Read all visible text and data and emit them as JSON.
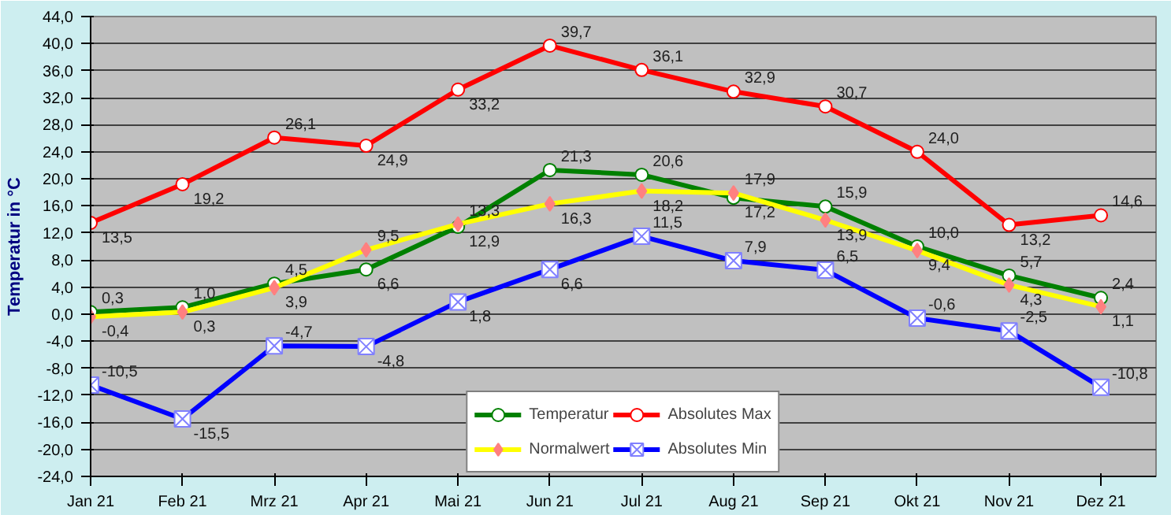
{
  "chart_data": {
    "type": "line",
    "ylabel": "Temperatur in °C",
    "categories": [
      "Jan 21",
      "Feb 21",
      "Mrz 21",
      "Apr 21",
      "Mai 21",
      "Jun 21",
      "Jul 21",
      "Aug 21",
      "Sep 21",
      "Okt 21",
      "Nov 21",
      "Dez 21"
    ],
    "series": [
      {
        "name": "Temperatur",
        "color": "#008000",
        "marker": "circle",
        "values": [
          0.3,
          1.0,
          4.5,
          6.6,
          12.9,
          21.3,
          20.6,
          17.2,
          15.9,
          10.0,
          5.7,
          2.4
        ],
        "value_labels": [
          "0,3",
          "1,0",
          "4,5",
          "6,6",
          "12,9",
          "21,3",
          "20,6",
          "17,2",
          "15,9",
          "10,0",
          "5,7",
          "2,4"
        ]
      },
      {
        "name": "Normalwert",
        "color": "#ffff00",
        "marker": "diamond",
        "values": [
          -0.4,
          0.3,
          3.9,
          9.5,
          13.3,
          16.3,
          18.2,
          17.9,
          13.9,
          9.4,
          4.3,
          1.1
        ],
        "value_labels": [
          "-0,4",
          "0,3",
          "3,9",
          "9,5",
          "13,3",
          "16,3",
          "18,2",
          "17,9",
          "13,9",
          "9,4",
          "4,3",
          "1,1"
        ]
      },
      {
        "name": "Absolutes Max",
        "color": "#ff0000",
        "marker": "circle",
        "values": [
          13.5,
          19.2,
          26.1,
          24.9,
          33.2,
          39.7,
          36.1,
          32.9,
          30.7,
          24.0,
          13.2,
          14.6
        ],
        "value_labels": [
          "13,5",
          "19,2",
          "26,1",
          "24,9",
          "33,2",
          "39,7",
          "36,1",
          "32,9",
          "30,7",
          "24,0",
          "13,2",
          "14,6"
        ]
      },
      {
        "name": "Absolutes Min",
        "color": "#0000ff",
        "marker": "cross",
        "values": [
          -10.5,
          -15.5,
          -4.7,
          -4.8,
          1.8,
          6.6,
          11.5,
          7.9,
          6.5,
          -0.6,
          -2.5,
          -10.8
        ],
        "value_labels": [
          "-10,5",
          "-15,5",
          "-4,7",
          "-4,8",
          "1,8",
          "6,6",
          "11,5",
          "7,9",
          "6,5",
          "-0,6",
          "-2,5",
          "-10,8"
        ]
      }
    ],
    "ylim": [
      -24,
      44
    ],
    "yticks": [
      {
        "value": -24,
        "label": "-24,0"
      },
      {
        "value": -20,
        "label": "-20,0"
      },
      {
        "value": -16,
        "label": "-16,0"
      },
      {
        "value": -12,
        "label": "-12,0"
      },
      {
        "value": -8,
        "label": "-8,0"
      },
      {
        "value": -4,
        "label": "-4,0"
      },
      {
        "value": 0,
        "label": "0,0"
      },
      {
        "value": 4,
        "label": "4,0"
      },
      {
        "value": 8,
        "label": "8,0"
      },
      {
        "value": 12,
        "label": "12,0"
      },
      {
        "value": 16,
        "label": "16,0"
      },
      {
        "value": 20,
        "label": "20,0"
      },
      {
        "value": 24,
        "label": "24,0"
      },
      {
        "value": 28,
        "label": "28,0"
      },
      {
        "value": 32,
        "label": "32,0"
      },
      {
        "value": 36,
        "label": "36,0"
      },
      {
        "value": 40,
        "label": "40,0"
      },
      {
        "value": 44,
        "label": "44,0"
      }
    ],
    "grid": "y",
    "legend": "bottom",
    "line_style": "solid"
  }
}
